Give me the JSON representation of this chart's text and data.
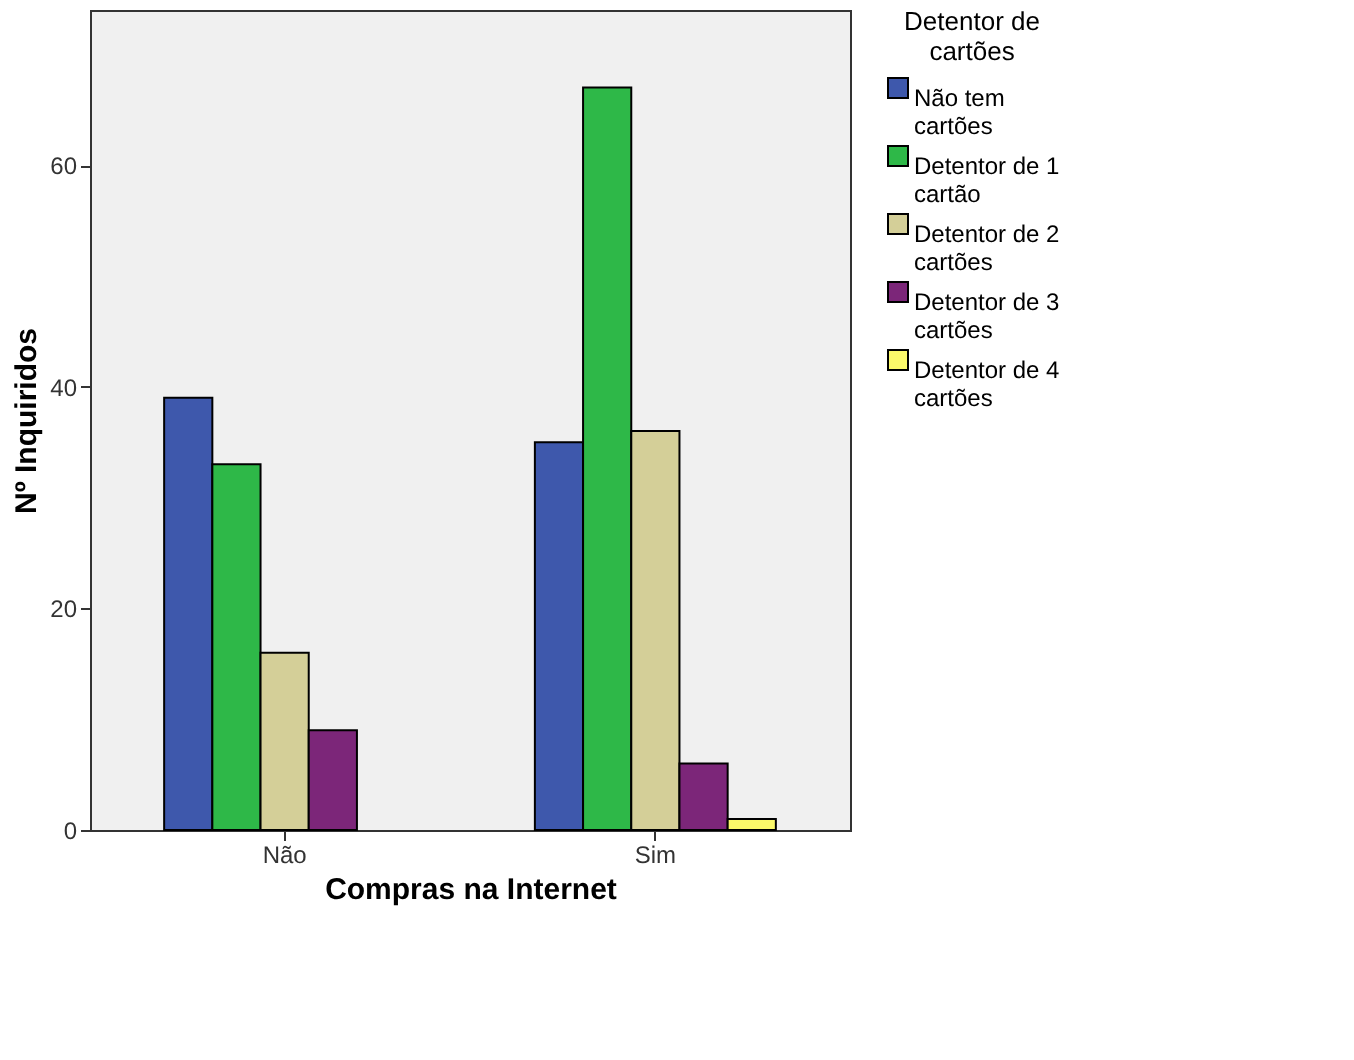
{
  "chart_data": {
    "type": "bar",
    "xlabel": "Compras na Internet",
    "ylabel": "Nº Inquiridos",
    "legend_title": "Detentor de cartões",
    "categories": [
      "Não",
      "Sim"
    ],
    "series": [
      {
        "name": "Não tem cartões",
        "color": "#3e58ac",
        "values": [
          39,
          35
        ]
      },
      {
        "name": "Detentor de 1 cartão",
        "color": "#2eb848",
        "values": [
          33,
          67
        ]
      },
      {
        "name": "Detentor de 2 cartões",
        "color": "#d4cf98",
        "values": [
          16,
          36
        ]
      },
      {
        "name": "Detentor de 3 cartões",
        "color": "#7c2679",
        "values": [
          9,
          6
        ]
      },
      {
        "name": "Detentor de 4 cartões",
        "color": "#fbf96a",
        "values": [
          null,
          1
        ]
      }
    ],
    "ylim": [
      0,
      74
    ],
    "yticks": [
      0,
      20,
      40,
      60
    ],
    "grid": false,
    "legend": "right"
  }
}
